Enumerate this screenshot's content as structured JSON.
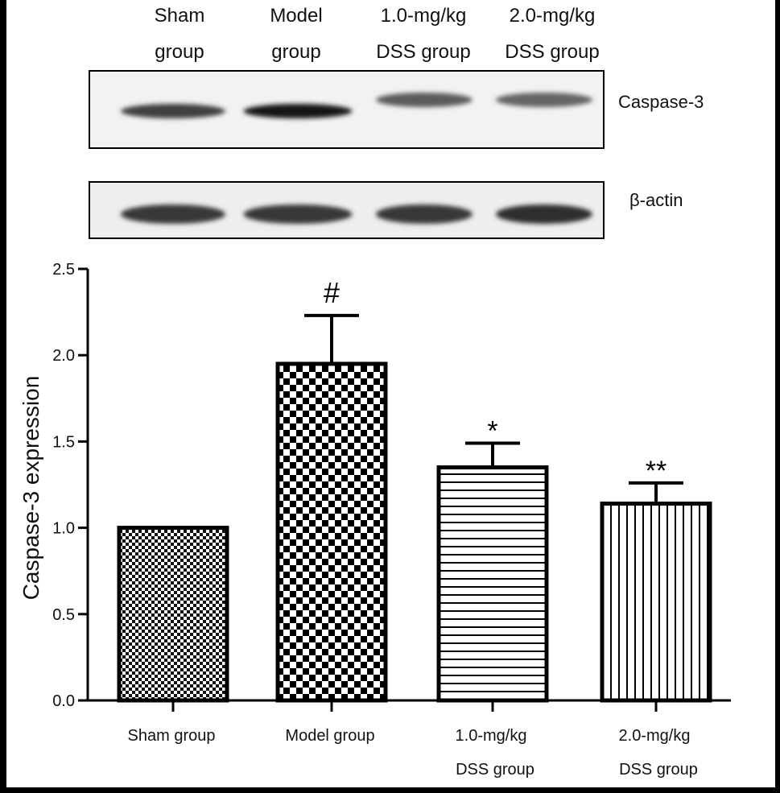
{
  "blot": {
    "lanes": [
      {
        "line1": "Sham",
        "line2": "group"
      },
      {
        "line1": "Model",
        "line2": "group"
      },
      {
        "line1": "1.0-mg/kg",
        "line2": "DSS group"
      },
      {
        "line1": "2.0-mg/kg",
        "line2": "DSS group"
      }
    ],
    "rows": [
      {
        "label": "Caspase-3",
        "intensity": [
          0.75,
          1.0,
          0.6,
          0.55
        ]
      },
      {
        "label": "β-actin",
        "intensity": [
          0.8,
          0.8,
          0.8,
          0.85
        ]
      }
    ]
  },
  "chart_data": {
    "type": "bar",
    "categories": [
      {
        "line1": "Sham group",
        "line2": ""
      },
      {
        "line1": "Model group",
        "line2": ""
      },
      {
        "line1": "1.0-mg/kg",
        "line2": "DSS group"
      },
      {
        "line1": "2.0-mg/kg",
        "line2": "DSS group"
      }
    ],
    "values": [
      1.0,
      1.95,
      1.35,
      1.14
    ],
    "errors": [
      0.0,
      0.28,
      0.14,
      0.12
    ],
    "annotations": [
      "",
      "#",
      "*",
      "**"
    ],
    "patterns": [
      "fine-checker",
      "checker",
      "horizontal-lines",
      "vertical-lines"
    ],
    "title": "",
    "xlabel": "",
    "ylabel": "Caspase-3 expression",
    "ylim": [
      0,
      2.5
    ],
    "yticks": [
      "0.0",
      "0.5",
      "1.0",
      "1.5",
      "2.0",
      "2.5"
    ],
    "grid": false
  }
}
